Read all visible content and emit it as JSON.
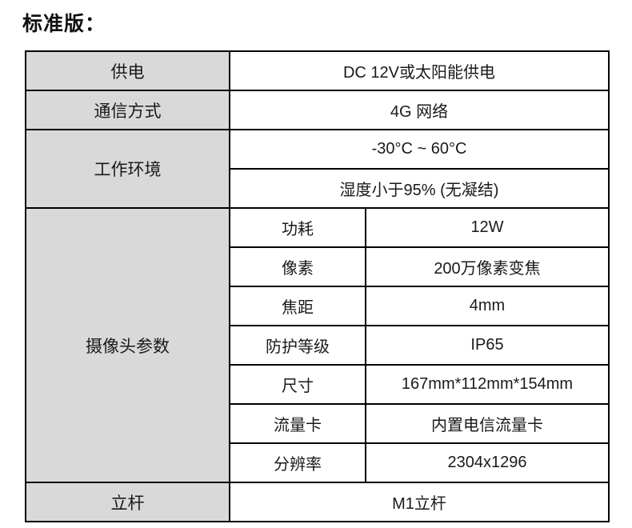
{
  "page": {
    "title": "标准版："
  },
  "colors": {
    "label_bg": "#d9d9d9",
    "border": "#000000",
    "text": "#1a1a1a"
  },
  "table": {
    "rows": [
      {
        "label": "供电",
        "value": "DC 12V或太阳能供电"
      },
      {
        "label": "通信方式",
        "value": "4G 网络"
      },
      {
        "label": "工作环境",
        "values": [
          "-30°C ~ 60°C",
          "湿度小于95% (无凝结)"
        ]
      },
      {
        "label": "摄像头参数",
        "params": [
          {
            "name": "功耗",
            "value": "12W"
          },
          {
            "name": "像素",
            "value": "200万像素变焦"
          },
          {
            "name": "焦距",
            "value": "4mm"
          },
          {
            "name": "防护等级",
            "value": "IP65"
          },
          {
            "name": "尺寸",
            "value": "167mm*112mm*154mm"
          },
          {
            "name": "流量卡",
            "value": "内置电信流量卡"
          },
          {
            "name": "分辨率",
            "value": "2304x1296"
          }
        ]
      },
      {
        "label": "立杆",
        "value": "M1立杆"
      }
    ]
  }
}
